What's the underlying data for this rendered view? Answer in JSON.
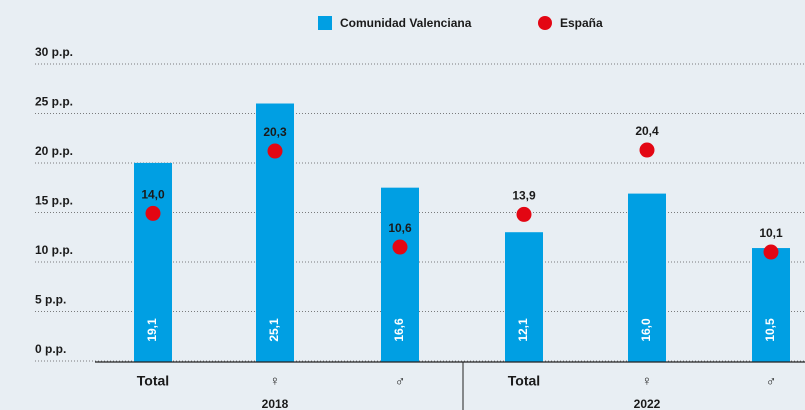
{
  "chart_data": {
    "type": "bar",
    "categories": [
      "Total",
      "♀",
      "♂",
      "Total",
      "♀",
      "♂"
    ],
    "groups": [
      "2018",
      "2022"
    ],
    "series": [
      {
        "name": "Comunidad Valenciana",
        "color": "#009fe3",
        "kind": "bar",
        "values": [
          19.1,
          25.1,
          16.6,
          12.1,
          16.0,
          10.5
        ],
        "value_labels": [
          "19,1",
          "25,1",
          "16,6",
          "12,1",
          "16,0",
          "10,5"
        ]
      },
      {
        "name": "España",
        "color": "#e30613",
        "kind": "dot",
        "values": [
          14.0,
          20.3,
          10.6,
          13.9,
          20.4,
          10.1
        ],
        "value_labels": [
          "14,0",
          "20,3",
          "10,6",
          "13,9",
          "20,4",
          "10,1"
        ]
      }
    ],
    "ylim": [
      0,
      30
    ],
    "yticks": [
      {
        "value": 0,
        "label": "0 p.p."
      },
      {
        "value": 5,
        "label": "5 p.p."
      },
      {
        "value": 10,
        "label": "10 p.p."
      },
      {
        "value": 15,
        "label": "15 p.p."
      },
      {
        "value": 20,
        "label": "20 p.p."
      },
      {
        "value": 25,
        "label": "25 p.p."
      },
      {
        "value": 30,
        "label": "30 p.p."
      }
    ],
    "grid": true
  }
}
